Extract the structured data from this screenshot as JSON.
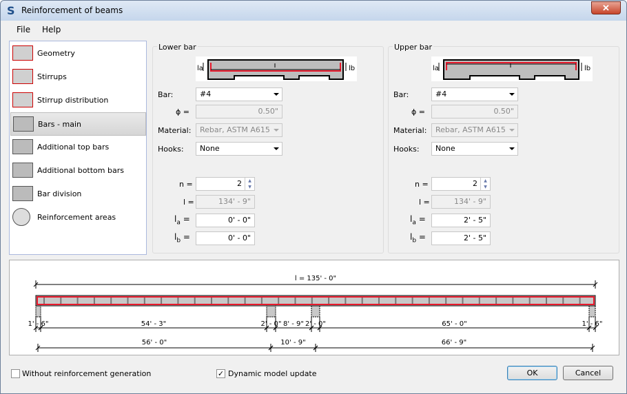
{
  "window": {
    "title": "Reinforcement of beams",
    "app_icon": "S",
    "close_icon": "close-icon"
  },
  "menu": [
    "File",
    "Help"
  ],
  "sidebar": {
    "items": [
      {
        "label": "Geometry",
        "icon": "geometry-icon"
      },
      {
        "label": "Stirrups",
        "icon": "stirrups-icon"
      },
      {
        "label": "Stirrup distribution",
        "icon": "stirrup-distribution-icon"
      },
      {
        "label": "Bars - main",
        "icon": "bars-main-icon",
        "selected": true
      },
      {
        "label": "Additional top bars",
        "icon": "additional-top-bars-icon"
      },
      {
        "label": "Additional bottom bars",
        "icon": "additional-bottom-bars-icon"
      },
      {
        "label": "Bar division",
        "icon": "bar-division-icon"
      },
      {
        "label": "Reinforcement areas",
        "icon": "reinforcement-areas-icon"
      }
    ]
  },
  "labels": {
    "bar": "Bar:",
    "phi": "ϕ =",
    "material": "Material:",
    "hooks": "Hooks:",
    "n": "n =",
    "l": "l =",
    "la": "l",
    "la_sub": "a",
    "lb": "l",
    "lb_sub": "b",
    "eq": "=",
    "diag_la": "la",
    "diag_lb": "lb",
    "diag_l": "l"
  },
  "lower": {
    "title": "Lower bar",
    "bar": "#4",
    "phi": "0.50\"",
    "material": "Rebar, ASTM A615",
    "hooks": "None",
    "n": "2",
    "l": "134' - 9\"",
    "la": "0' - 0\"",
    "lb": "0' - 0\""
  },
  "upper": {
    "title": "Upper bar",
    "bar": "#4",
    "phi": "0.50\"",
    "material": "Rebar, ASTM A615",
    "hooks": "None",
    "n": "2",
    "l": "134' - 9\"",
    "la": "2' - 5\"",
    "lb": "2' - 5\""
  },
  "diagram": {
    "total": "l = 135' - 0\"",
    "row1": [
      "1' - 6\"",
      "54' - 3\"",
      "2' - 0\"",
      "8' - 9\"",
      "2' - 0\"",
      "65' - 0\"",
      "1' - 6\""
    ],
    "row2": [
      "56' - 0\"",
      "10' - 9\"",
      "66' - 9\""
    ]
  },
  "bottom": {
    "without_reinforcement": "Without reinforcement generation",
    "without_checked": false,
    "dynamic_update": "Dynamic model update",
    "dynamic_checked": true,
    "check_mark": "✓",
    "ok": "OK",
    "cancel": "Cancel"
  },
  "colors": {
    "bar": "#e8192c",
    "concrete": "#c8c8c8"
  }
}
